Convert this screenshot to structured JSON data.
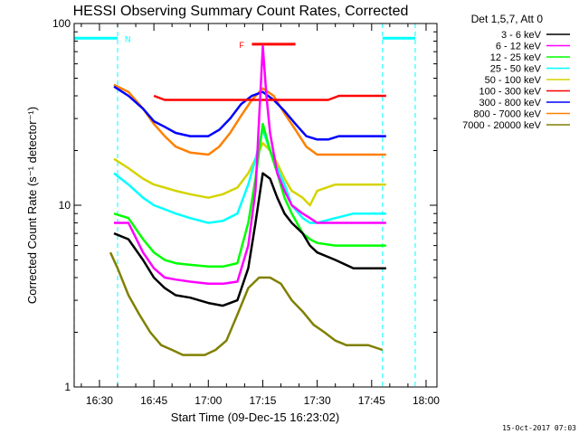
{
  "chart_data": {
    "type": "line",
    "title": "HESSI Observing Summary Count Rates, Corrected",
    "xlabel": "Start Time (09-Dec-15 16:23:02)",
    "ylabel": "Corrected Count Rate (s⁻¹ detector⁻¹)",
    "yscale": "log",
    "ylim": [
      1,
      100
    ],
    "xlim": [
      "16:23:02",
      "18:03:00"
    ],
    "x_ticks": [
      "16:30",
      "16:45",
      "17:00",
      "17:15",
      "17:30",
      "17:45",
      "18:00"
    ],
    "y_ticks": [
      "1",
      "10",
      "100"
    ],
    "timestamp": "15-Oct-2017 07:03",
    "legend_header": "Det 1,5,7, Att 0",
    "legend_position": "right",
    "annotations": {
      "night_label": "N",
      "night_intervals": [
        [
          "16:23",
          "16:35"
        ],
        [
          "17:48",
          "17:57"
        ]
      ],
      "flare_label": "F",
      "flare_interval": [
        "17:12",
        "17:24"
      ],
      "flare_level": 77
    },
    "series": [
      {
        "name": "3 - 6 keV",
        "color": "#000000",
        "x": [
          "16:34",
          "16:38",
          "16:42",
          "16:45",
          "16:48",
          "16:51",
          "16:55",
          "17:00",
          "17:04",
          "17:08",
          "17:11",
          "17:13",
          "17:15",
          "17:17",
          "17:19",
          "17:21",
          "17:23",
          "17:26",
          "17:28",
          "17:30",
          "17:35",
          "17:40",
          "17:45",
          "17:49"
        ],
        "y": [
          7,
          6.5,
          5,
          4,
          3.5,
          3.2,
          3.1,
          2.9,
          2.8,
          3,
          4.5,
          8,
          15,
          14,
          11,
          9,
          8,
          7,
          6,
          5.5,
          5,
          4.5,
          4.5,
          4.5
        ]
      },
      {
        "name": "6 - 12 keV",
        "color": "#ff00ff",
        "x": [
          "16:34",
          "16:38",
          "16:42",
          "16:45",
          "16:48",
          "16:51",
          "16:55",
          "17:00",
          "17:04",
          "17:08",
          "17:11",
          "17:13",
          "17:14",
          "17:15",
          "17:16",
          "17:17",
          "17:19",
          "17:21",
          "17:23",
          "17:26",
          "17:28",
          "17:30",
          "17:35",
          "17:40",
          "17:45",
          "17:49"
        ],
        "y": [
          8,
          8,
          5.5,
          4.5,
          4,
          3.9,
          3.8,
          3.7,
          3.7,
          3.8,
          6,
          12,
          30,
          75,
          40,
          25,
          15,
          12,
          10,
          9,
          8.5,
          8,
          8,
          8,
          8,
          8
        ]
      },
      {
        "name": "12 - 25 keV",
        "color": "#00ff00",
        "x": [
          "16:34",
          "16:38",
          "16:42",
          "16:45",
          "16:48",
          "16:51",
          "16:55",
          "17:00",
          "17:04",
          "17:08",
          "17:11",
          "17:13",
          "17:15",
          "17:17",
          "17:19",
          "17:21",
          "17:23",
          "17:26",
          "17:28",
          "17:30",
          "17:35",
          "17:40",
          "17:45",
          "17:49"
        ],
        "y": [
          9,
          8.5,
          6.5,
          5.5,
          5,
          4.8,
          4.7,
          4.6,
          4.6,
          4.8,
          8,
          14,
          28,
          20,
          15,
          11,
          9,
          7,
          6.5,
          6.2,
          6,
          6,
          6,
          6
        ]
      },
      {
        "name": "25 - 50 keV",
        "color": "#00ffff",
        "x": [
          "16:34",
          "16:38",
          "16:42",
          "16:45",
          "16:48",
          "16:51",
          "16:55",
          "17:00",
          "17:04",
          "17:08",
          "17:11",
          "17:13",
          "17:15",
          "17:17",
          "17:19",
          "17:21",
          "17:23",
          "17:26",
          "17:28",
          "17:30",
          "17:35",
          "17:40",
          "17:45",
          "17:49"
        ],
        "y": [
          15,
          13,
          11,
          10,
          9.5,
          9,
          8.5,
          8,
          8.2,
          9,
          13,
          18,
          26,
          20,
          16,
          13,
          10,
          8.5,
          8,
          8,
          8.5,
          9,
          9,
          9
        ]
      },
      {
        "name": "50 - 100 keV",
        "color": "#d4d400",
        "x": [
          "16:34",
          "16:38",
          "16:42",
          "16:45",
          "16:48",
          "16:51",
          "16:55",
          "17:00",
          "17:04",
          "17:08",
          "17:11",
          "17:13",
          "17:15",
          "17:17",
          "17:19",
          "17:21",
          "17:23",
          "17:26",
          "17:28",
          "17:30",
          "17:35",
          "17:40",
          "17:45",
          "17:49"
        ],
        "y": [
          18,
          16,
          14,
          13,
          12.5,
          12,
          11.5,
          11,
          11.5,
          12.5,
          15,
          18,
          22,
          20,
          17,
          14,
          12,
          11,
          10,
          12,
          13,
          13,
          13,
          13
        ]
      },
      {
        "name": "100 - 300 keV",
        "color": "#ff0000",
        "x": [
          "16:45",
          "16:48",
          "16:51",
          "16:55",
          "17:00",
          "17:03",
          "17:30",
          "17:33",
          "17:36",
          "17:40",
          "17:45",
          "17:49"
        ],
        "y": [
          40,
          38,
          38,
          38,
          38,
          38,
          38,
          38,
          40,
          40,
          40,
          40
        ]
      },
      {
        "name": "300 - 800 keV",
        "color": "#0000ff",
        "x": [
          "16:34",
          "16:38",
          "16:42",
          "16:45",
          "16:48",
          "16:51",
          "16:55",
          "17:00",
          "17:03",
          "17:06",
          "17:09",
          "17:12",
          "17:15",
          "17:18",
          "17:21",
          "17:24",
          "17:27",
          "17:30",
          "17:33",
          "17:36",
          "17:40",
          "17:45",
          "17:49"
        ],
        "y": [
          45,
          40,
          34,
          29,
          27,
          25,
          24,
          24,
          26,
          30,
          36,
          40,
          42,
          38,
          33,
          28,
          24,
          23,
          23,
          24,
          24,
          24,
          24
        ]
      },
      {
        "name": "800 - 7000 keV",
        "color": "#ff8000",
        "x": [
          "16:34",
          "16:38",
          "16:42",
          "16:45",
          "16:48",
          "16:51",
          "16:55",
          "17:00",
          "17:03",
          "17:06",
          "17:09",
          "17:12",
          "17:15",
          "17:18",
          "17:21",
          "17:24",
          "17:27",
          "17:30",
          "17:33",
          "17:36",
          "17:40",
          "17:45",
          "17:49"
        ],
        "y": [
          46,
          42,
          34,
          28,
          24,
          21,
          19.5,
          19,
          21,
          25,
          31,
          38,
          44,
          40,
          32,
          26,
          21,
          19,
          19,
          19,
          19,
          19,
          19
        ]
      },
      {
        "name": "7000 - 20000 keV",
        "color": "#808000",
        "x": [
          "16:33",
          "16:35",
          "16:38",
          "16:41",
          "16:44",
          "16:47",
          "16:50",
          "16:53",
          "16:56",
          "16:59",
          "17:02",
          "17:05",
          "17:08",
          "17:11",
          "17:14",
          "17:17",
          "17:20",
          "17:23",
          "17:26",
          "17:29",
          "17:32",
          "17:35",
          "17:38",
          "17:41",
          "17:44",
          "17:48"
        ],
        "y": [
          5.5,
          4.5,
          3.2,
          2.5,
          2,
          1.7,
          1.6,
          1.5,
          1.5,
          1.5,
          1.6,
          1.8,
          2.5,
          3.5,
          4,
          4,
          3.7,
          3,
          2.6,
          2.2,
          2,
          1.8,
          1.7,
          1.7,
          1.7,
          1.6
        ]
      }
    ]
  }
}
